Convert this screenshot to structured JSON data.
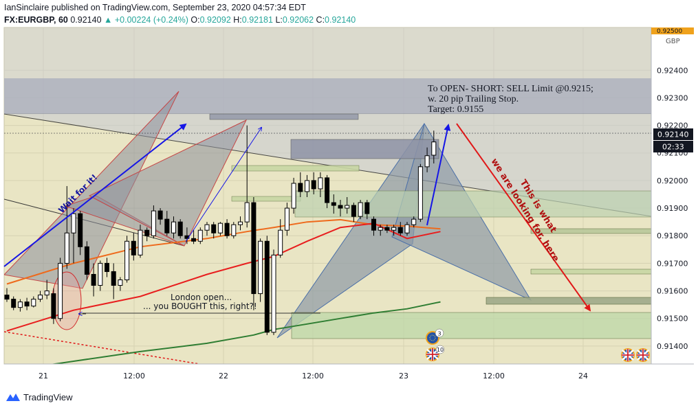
{
  "header": {
    "published_line": "IanSinclaire published on TradingView.com, September 23, 2020 04:57:34 EDT",
    "symbol": "FX:EURGBP, 60",
    "last": "0.92140",
    "change": "+0.00224 (+0.24%)",
    "o_label": "O:",
    "o_value": "0.92092",
    "h_label": "H:",
    "h_value": "0.92181",
    "l_label": "L:",
    "l_value": "0.92062",
    "c_label": "C:",
    "c_value": "0.92140"
  },
  "footer": {
    "brand": "TradingView"
  },
  "colors": {
    "plot_bg": "#e9e5c4",
    "grid": "#d6d2b2",
    "bull_candle": "#ffffff",
    "bear_candle": "#000000",
    "ema_orange": "#ee6a1c",
    "ema_red": "#e81e1e",
    "sma_green": "#2e7d32",
    "pattern_fill": "#8c8f9c",
    "arrow_blue": "#1515e6",
    "arrow_red": "#e01818",
    "price_tag": "#131722",
    "currency_marker": "#f0a21c"
  },
  "chart_data": {
    "type": "candlestick",
    "timeframe": "60",
    "currency": "GBP",
    "ylim": [
      0.91335,
      0.92555
    ],
    "top_marker": "0.92500",
    "y_ticks": [
      "0.92400",
      "0.92300",
      "0.92200",
      "0.92100",
      "0.92000",
      "0.91900",
      "0.91800",
      "0.91700",
      "0.91600",
      "0.91500",
      "0.91400"
    ],
    "x_ticks": [
      "21",
      "12:00",
      "22",
      "12:00",
      "23",
      "12:00",
      "24"
    ],
    "last_price_label": "0.92140",
    "countdown": "02:33",
    "candles": [
      {
        "o": 0.91585,
        "h": 0.9161,
        "l": 0.9156,
        "c": 0.9157
      },
      {
        "o": 0.9157,
        "h": 0.9158,
        "l": 0.9153,
        "c": 0.9154
      },
      {
        "o": 0.9154,
        "h": 0.9157,
        "l": 0.91525,
        "c": 0.9156
      },
      {
        "o": 0.9156,
        "h": 0.91575,
        "l": 0.9153,
        "c": 0.91545
      },
      {
        "o": 0.91545,
        "h": 0.9158,
        "l": 0.9154,
        "c": 0.9157
      },
      {
        "o": 0.9157,
        "h": 0.916,
        "l": 0.9156,
        "c": 0.91585
      },
      {
        "o": 0.91585,
        "h": 0.9164,
        "l": 0.9157,
        "c": 0.916
      },
      {
        "o": 0.9159,
        "h": 0.9161,
        "l": 0.9148,
        "c": 0.915
      },
      {
        "o": 0.915,
        "h": 0.9172,
        "l": 0.9149,
        "c": 0.917
      },
      {
        "o": 0.917,
        "h": 0.9198,
        "l": 0.9168,
        "c": 0.9181
      },
      {
        "o": 0.9181,
        "h": 0.919,
        "l": 0.917,
        "c": 0.9188
      },
      {
        "o": 0.9188,
        "h": 0.9189,
        "l": 0.9173,
        "c": 0.9176
      },
      {
        "o": 0.9176,
        "h": 0.9178,
        "l": 0.9164,
        "c": 0.9166
      },
      {
        "o": 0.9166,
        "h": 0.917,
        "l": 0.9158,
        "c": 0.9162
      },
      {
        "o": 0.9162,
        "h": 0.9171,
        "l": 0.916,
        "c": 0.917
      },
      {
        "o": 0.917,
        "h": 0.9172,
        "l": 0.9165,
        "c": 0.9167
      },
      {
        "o": 0.9167,
        "h": 0.917,
        "l": 0.9157,
        "c": 0.9162
      },
      {
        "o": 0.9162,
        "h": 0.9165,
        "l": 0.916,
        "c": 0.9164
      },
      {
        "o": 0.9164,
        "h": 0.918,
        "l": 0.9163,
        "c": 0.9178
      },
      {
        "o": 0.9178,
        "h": 0.9181,
        "l": 0.9171,
        "c": 0.9173
      },
      {
        "o": 0.9173,
        "h": 0.9184,
        "l": 0.9172,
        "c": 0.9182
      },
      {
        "o": 0.9182,
        "h": 0.9183,
        "l": 0.9178,
        "c": 0.918
      },
      {
        "o": 0.918,
        "h": 0.9191,
        "l": 0.9179,
        "c": 0.9189
      },
      {
        "o": 0.9189,
        "h": 0.919,
        "l": 0.9184,
        "c": 0.9186
      },
      {
        "o": 0.9186,
        "h": 0.9189,
        "l": 0.918,
        "c": 0.9181
      },
      {
        "o": 0.9181,
        "h": 0.9187,
        "l": 0.9179,
        "c": 0.9185
      },
      {
        "o": 0.9185,
        "h": 0.9186,
        "l": 0.9179,
        "c": 0.918
      },
      {
        "o": 0.918,
        "h": 0.9183,
        "l": 0.9177,
        "c": 0.9179
      },
      {
        "o": 0.9179,
        "h": 0.9182,
        "l": 0.9177,
        "c": 0.9178
      },
      {
        "o": 0.9178,
        "h": 0.9183,
        "l": 0.9177,
        "c": 0.9182
      },
      {
        "o": 0.9182,
        "h": 0.9185,
        "l": 0.918,
        "c": 0.9184
      },
      {
        "o": 0.9184,
        "h": 0.9185,
        "l": 0.9179,
        "c": 0.9181
      },
      {
        "o": 0.9181,
        "h": 0.9185,
        "l": 0.918,
        "c": 0.91845
      },
      {
        "o": 0.91845,
        "h": 0.9186,
        "l": 0.9179,
        "c": 0.918
      },
      {
        "o": 0.918,
        "h": 0.9185,
        "l": 0.9179,
        "c": 0.9184
      },
      {
        "o": 0.9184,
        "h": 0.9187,
        "l": 0.9182,
        "c": 0.9185
      },
      {
        "o": 0.9185,
        "h": 0.922,
        "l": 0.9183,
        "c": 0.9192
      },
      {
        "o": 0.9192,
        "h": 0.9194,
        "l": 0.9153,
        "c": 0.9159
      },
      {
        "o": 0.9159,
        "h": 0.9179,
        "l": 0.9156,
        "c": 0.9178
      },
      {
        "o": 0.9178,
        "h": 0.918,
        "l": 0.9144,
        "c": 0.9145
      },
      {
        "o": 0.9145,
        "h": 0.9175,
        "l": 0.9144,
        "c": 0.9173
      },
      {
        "o": 0.9173,
        "h": 0.9186,
        "l": 0.9172,
        "c": 0.9182
      },
      {
        "o": 0.9182,
        "h": 0.9192,
        "l": 0.918,
        "c": 0.919
      },
      {
        "o": 0.919,
        "h": 0.9201,
        "l": 0.9188,
        "c": 0.9199
      },
      {
        "o": 0.9199,
        "h": 0.9203,
        "l": 0.9194,
        "c": 0.9196
      },
      {
        "o": 0.9196,
        "h": 0.9202,
        "l": 0.9194,
        "c": 0.92
      },
      {
        "o": 0.92,
        "h": 0.9203,
        "l": 0.9195,
        "c": 0.9197
      },
      {
        "o": 0.9197,
        "h": 0.9203,
        "l": 0.9194,
        "c": 0.9201
      },
      {
        "o": 0.9201,
        "h": 0.9202,
        "l": 0.919,
        "c": 0.9192
      },
      {
        "o": 0.9192,
        "h": 0.9195,
        "l": 0.9188,
        "c": 0.9191
      },
      {
        "o": 0.9191,
        "h": 0.9193,
        "l": 0.9187,
        "c": 0.919
      },
      {
        "o": 0.919,
        "h": 0.9194,
        "l": 0.9188,
        "c": 0.9191
      },
      {
        "o": 0.9191,
        "h": 0.9192,
        "l": 0.9185,
        "c": 0.9187
      },
      {
        "o": 0.9187,
        "h": 0.9193,
        "l": 0.9186,
        "c": 0.9192
      },
      {
        "o": 0.9192,
        "h": 0.9193,
        "l": 0.9186,
        "c": 0.9188
      },
      {
        "o": 0.9186,
        "h": 0.9187,
        "l": 0.918,
        "c": 0.9182
      },
      {
        "o": 0.9182,
        "h": 0.9184,
        "l": 0.918,
        "c": 0.9183
      },
      {
        "o": 0.9183,
        "h": 0.9184,
        "l": 0.9181,
        "c": 0.9182
      },
      {
        "o": 0.9182,
        "h": 0.9184,
        "l": 0.918,
        "c": 0.9183
      },
      {
        "o": 0.9183,
        "h": 0.9185,
        "l": 0.918,
        "c": 0.9181
      },
      {
        "o": 0.9181,
        "h": 0.9185,
        "l": 0.918,
        "c": 0.9184
      },
      {
        "o": 0.9184,
        "h": 0.9187,
        "l": 0.9183,
        "c": 0.9186
      },
      {
        "o": 0.9186,
        "h": 0.9206,
        "l": 0.9185,
        "c": 0.9205
      },
      {
        "o": 0.9205,
        "h": 0.9212,
        "l": 0.9203,
        "c": 0.9209
      },
      {
        "o": 0.92092,
        "h": 0.92181,
        "l": 0.92062,
        "c": 0.9214
      }
    ],
    "moving_averages": [
      {
        "color": "#ee6a1c",
        "points": [
          [
            0,
            0.91625
          ],
          [
            10,
            0.917
          ],
          [
            20,
            0.9176
          ],
          [
            30,
            0.9179
          ],
          [
            36,
            0.91815
          ],
          [
            40,
            0.9183
          ],
          [
            45,
            0.9185
          ],
          [
            50,
            0.91858
          ],
          [
            55,
            0.9184
          ],
          [
            60,
            0.91835
          ],
          [
            65,
            0.91825
          ]
        ]
      },
      {
        "color": "#e81e1e",
        "points": [
          [
            0,
            0.91455
          ],
          [
            10,
            0.9153
          ],
          [
            20,
            0.9158
          ],
          [
            30,
            0.9166
          ],
          [
            36,
            0.917
          ],
          [
            40,
            0.91725
          ],
          [
            45,
            0.9178
          ],
          [
            50,
            0.9183
          ],
          [
            55,
            0.91845
          ],
          [
            60,
            0.9179
          ],
          [
            65,
            0.91815
          ]
        ]
      },
      {
        "color": "#2e7d32",
        "points": [
          [
            3,
            0.9132
          ],
          [
            10,
            0.91345
          ],
          [
            20,
            0.9138
          ],
          [
            30,
            0.9141
          ],
          [
            37,
            0.9144
          ],
          [
            40,
            0.9146
          ],
          [
            45,
            0.9148
          ],
          [
            50,
            0.915
          ],
          [
            55,
            0.9152
          ],
          [
            60,
            0.91535
          ],
          [
            65,
            0.9156
          ]
        ]
      }
    ],
    "annotations": {
      "plan_line1": "To OPEN- SHORT: SELL Limit @0.9215;",
      "plan_line2": "w. 20 pip Trailing Stop.",
      "plan_line3": "Target: 0.9155",
      "wait": "Wait for it!",
      "london1": "London open...",
      "london2": "... you BOUGHT this, right?!",
      "looking1": "This is what",
      "looking2": "we are looking for, here",
      "event_count_1": "3",
      "event_count_2": "10"
    }
  }
}
